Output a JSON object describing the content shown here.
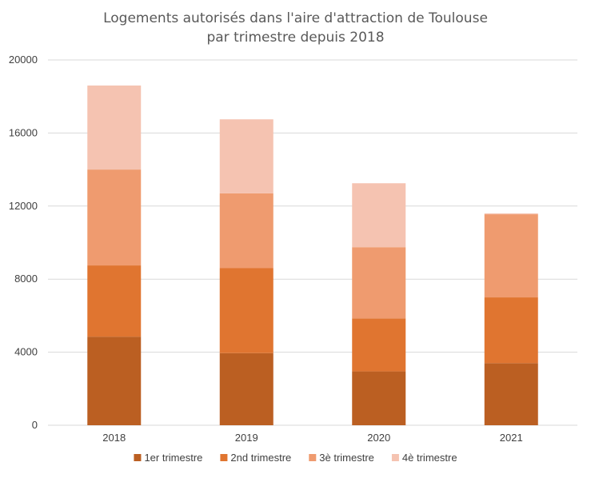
{
  "chart_data": {
    "type": "bar",
    "stacked": true,
    "title": "Logements autorisés dans l'aire d'attraction de Toulouse",
    "subtitle": "par trimestre depuis 2018",
    "categories": [
      "2018",
      "2019",
      "2020",
      "2021"
    ],
    "series": [
      {
        "name": "1er trimestre",
        "color": "#bb5f22",
        "values": [
          4850,
          3950,
          2950,
          3400
        ]
      },
      {
        "name": "2nd trimestre",
        "color": "#e07530",
        "values": [
          3900,
          4650,
          2900,
          3600
        ]
      },
      {
        "name": "3è trimestre",
        "color": "#ef9b6f",
        "values": [
          5250,
          4100,
          3900,
          4550
        ]
      },
      {
        "name": "4è trimestre",
        "color": "#f5c3b1",
        "values": [
          4600,
          4050,
          3500,
          50
        ]
      }
    ],
    "ylim": [
      0,
      20000
    ],
    "yticks": [
      0,
      4000,
      8000,
      12000,
      16000,
      20000
    ],
    "grid": true,
    "legend_position": "bottom"
  }
}
